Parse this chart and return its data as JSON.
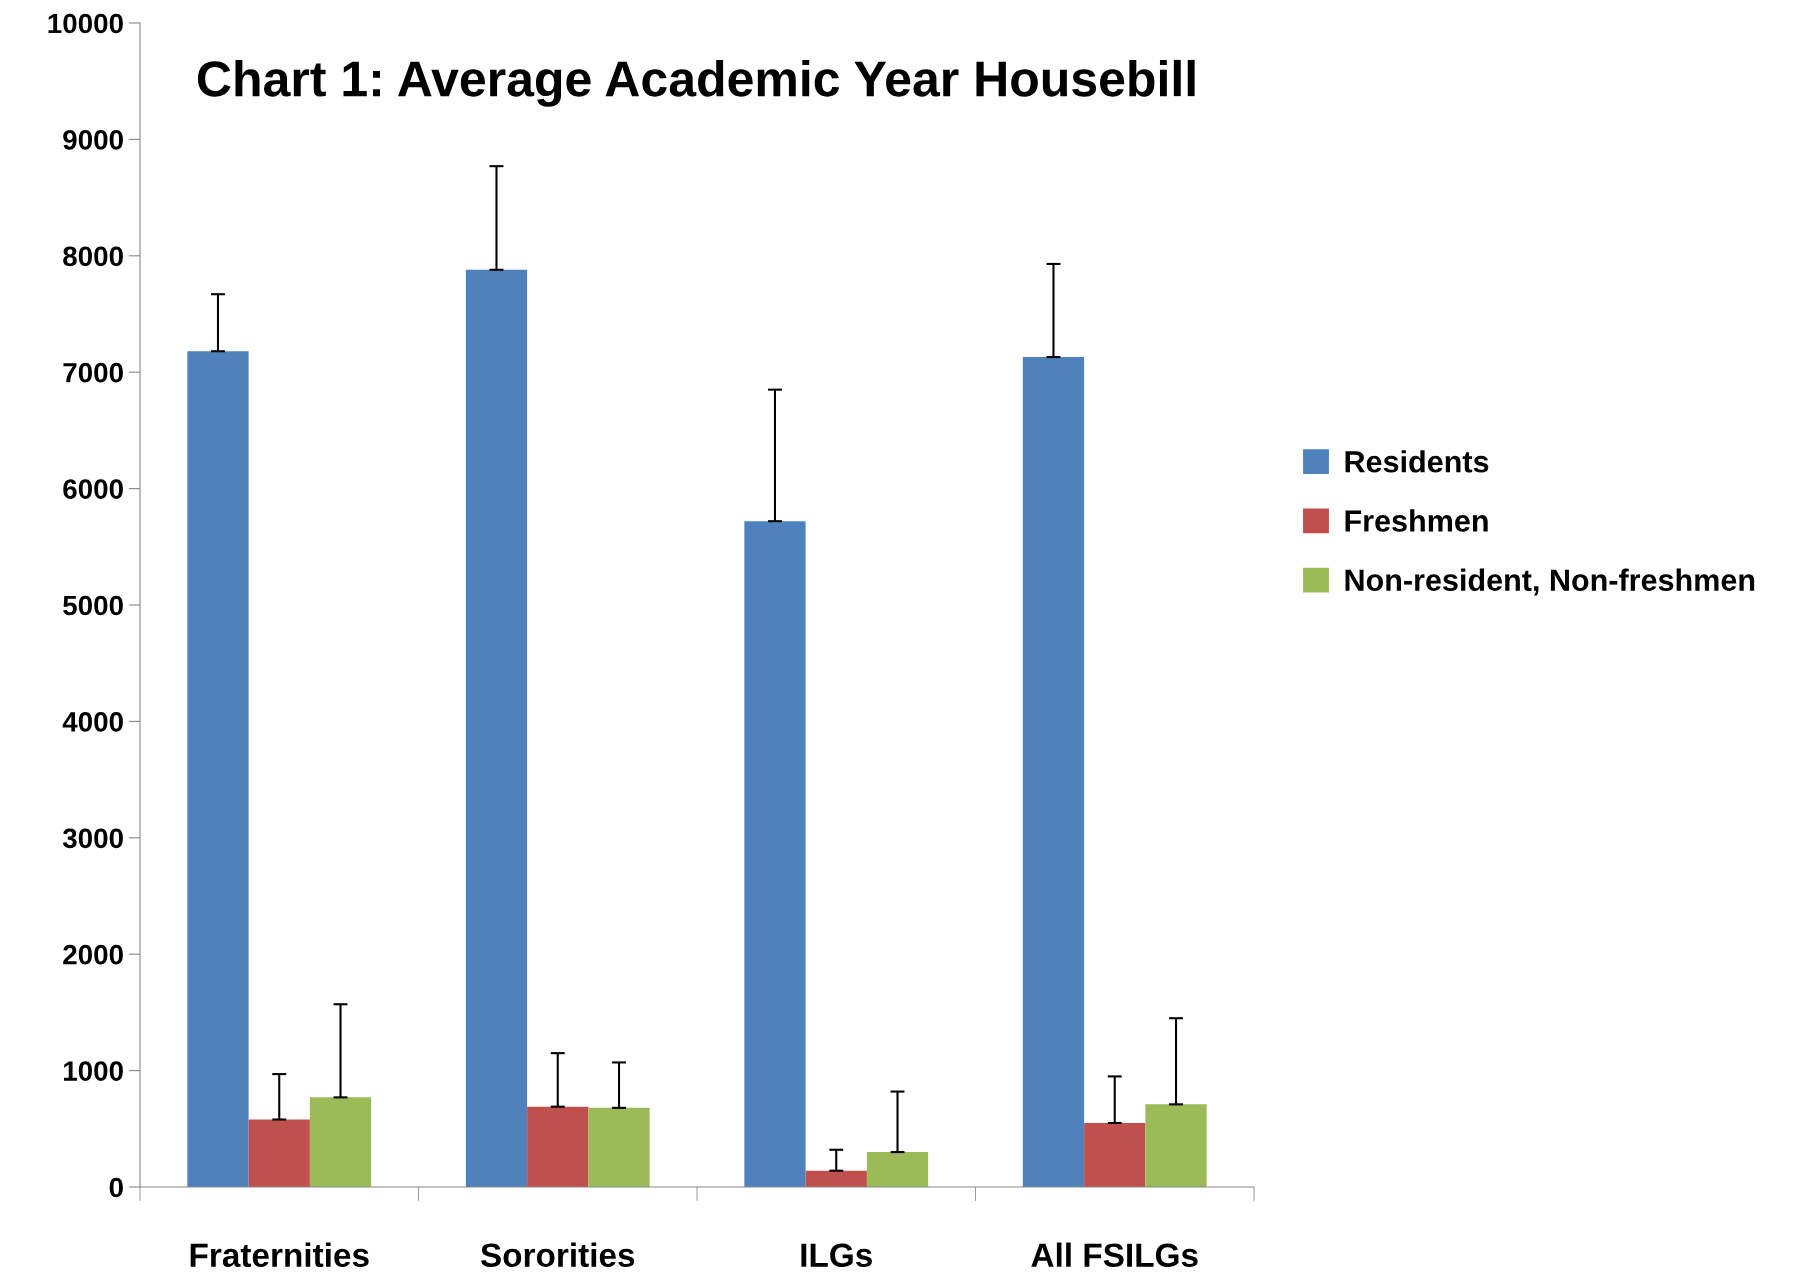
{
  "chart_data": {
    "type": "bar",
    "title": "Chart 1: Average Academic Year Housebill",
    "categories": [
      "Fraternities",
      "Sororities",
      "ILGs",
      "All FSILGs"
    ],
    "series": [
      {
        "name": "Residents",
        "color": "#4f81bd",
        "values": [
          7180,
          7880,
          5720,
          7130
        ],
        "errors": [
          [
            7180,
            7670
          ],
          [
            7880,
            8770
          ],
          [
            5720,
            6850
          ],
          [
            7130,
            7930
          ]
        ]
      },
      {
        "name": "Freshmen",
        "color": "#c0504d",
        "values": [
          580,
          690,
          140,
          550
        ],
        "errors": [
          [
            580,
            970
          ],
          [
            690,
            1150
          ],
          [
            140,
            320
          ],
          [
            550,
            950
          ]
        ]
      },
      {
        "name": "Non-resident, Non-freshmen",
        "color": "#9bbb59",
        "values": [
          770,
          680,
          300,
          710
        ],
        "errors": [
          [
            770,
            1570
          ],
          [
            680,
            1070
          ],
          [
            300,
            820
          ],
          [
            710,
            1450
          ]
        ]
      }
    ],
    "ylim": [
      0,
      10000
    ],
    "yticks": [
      0,
      1000,
      2000,
      3000,
      4000,
      5000,
      6000,
      7000,
      8000,
      9000,
      10000
    ],
    "grid": false,
    "legend": "right"
  }
}
